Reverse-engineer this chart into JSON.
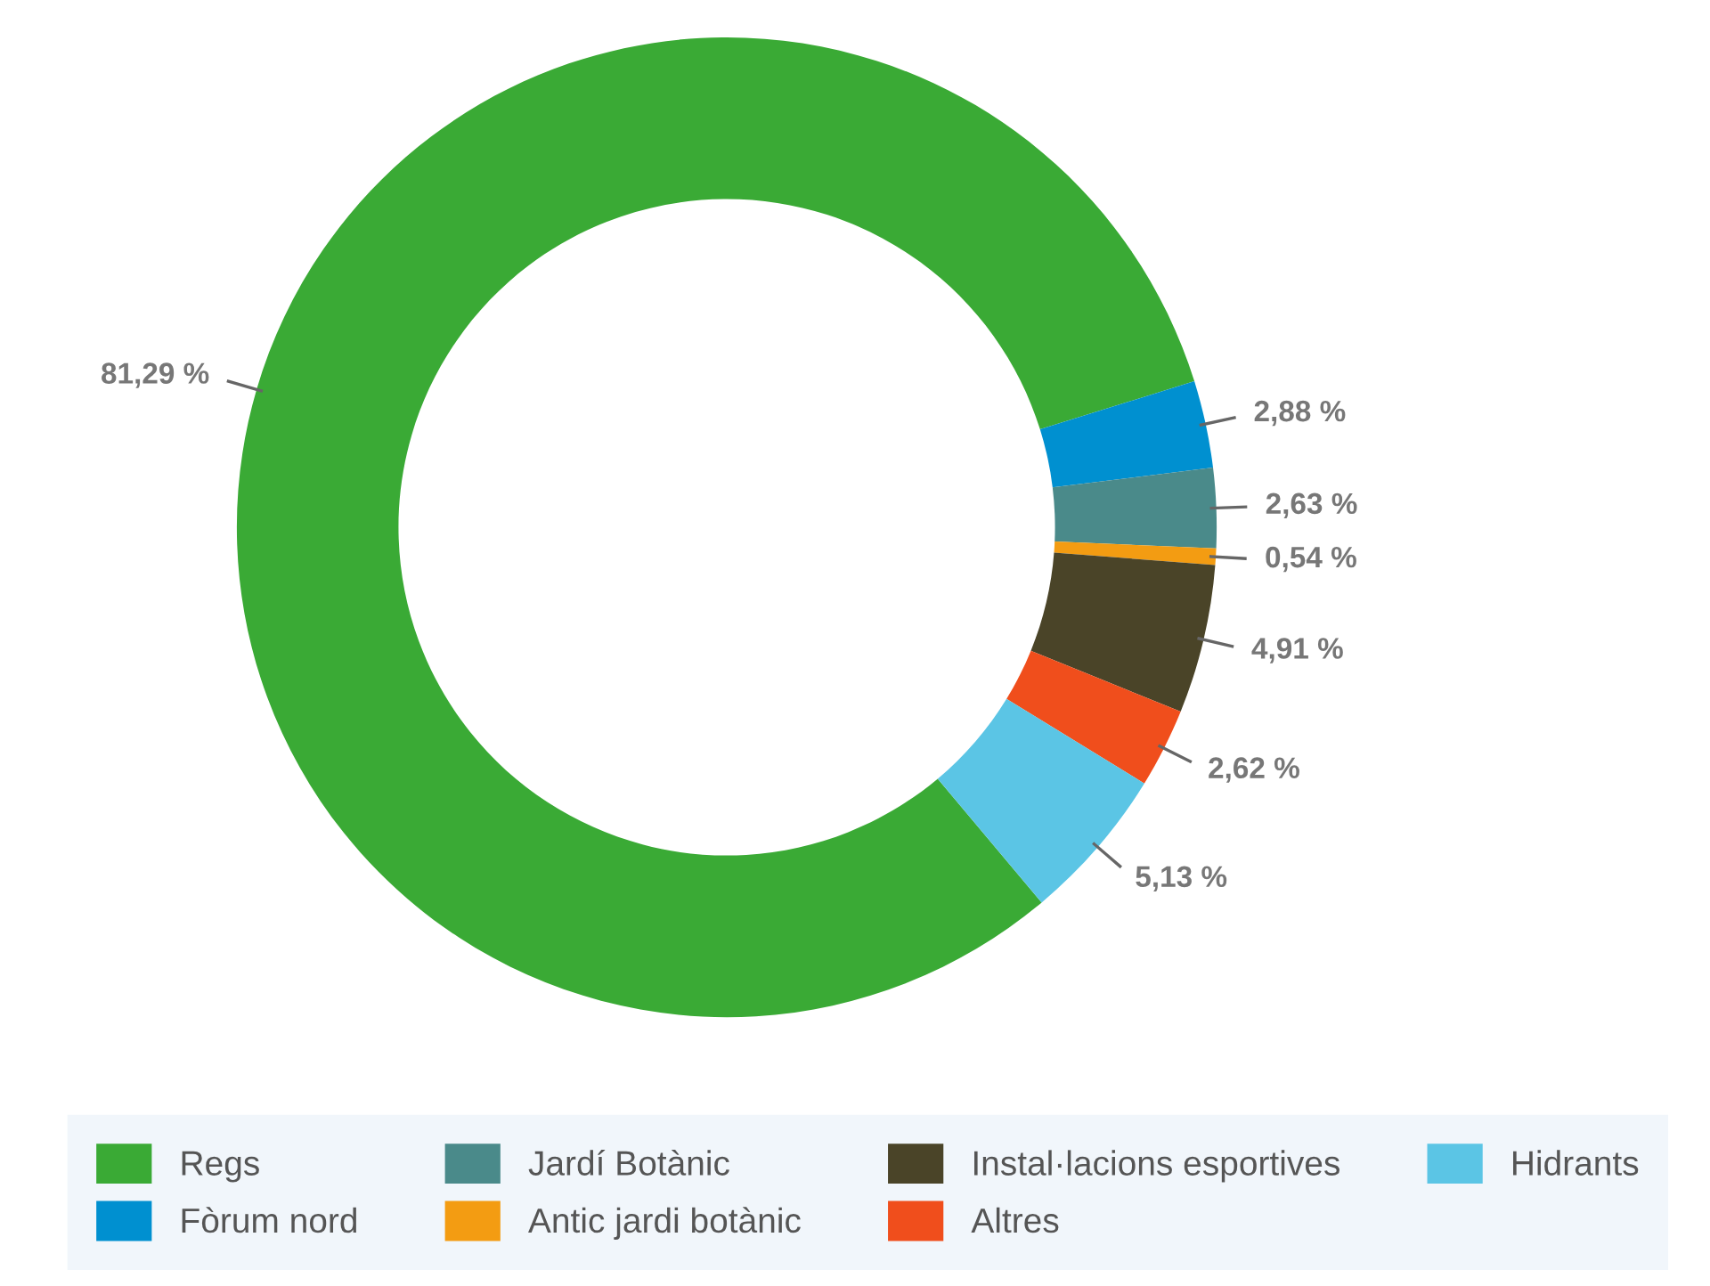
{
  "chart_data": {
    "type": "donut",
    "categories": [
      "Regs",
      "Fòrum nord",
      "Jardí Botànic",
      "Antic jardi botànic",
      "Instal·lacions esportives",
      "Altres",
      "Hidrants"
    ],
    "values": [
      81.29,
      2.88,
      2.63,
      0.54,
      4.91,
      2.62,
      5.13
    ],
    "colors": [
      "#3aaa35",
      "#0090d0",
      "#4a8a8a",
      "#f39c12",
      "#4a4428",
      "#f04e1c",
      "#5bc5e5"
    ],
    "value_labels": [
      "81,29 %",
      "2,88 %",
      "2,63 %",
      "0,54 %",
      "4,91 %",
      "2,62 %",
      "5,13 %"
    ],
    "legend": "bottom"
  }
}
